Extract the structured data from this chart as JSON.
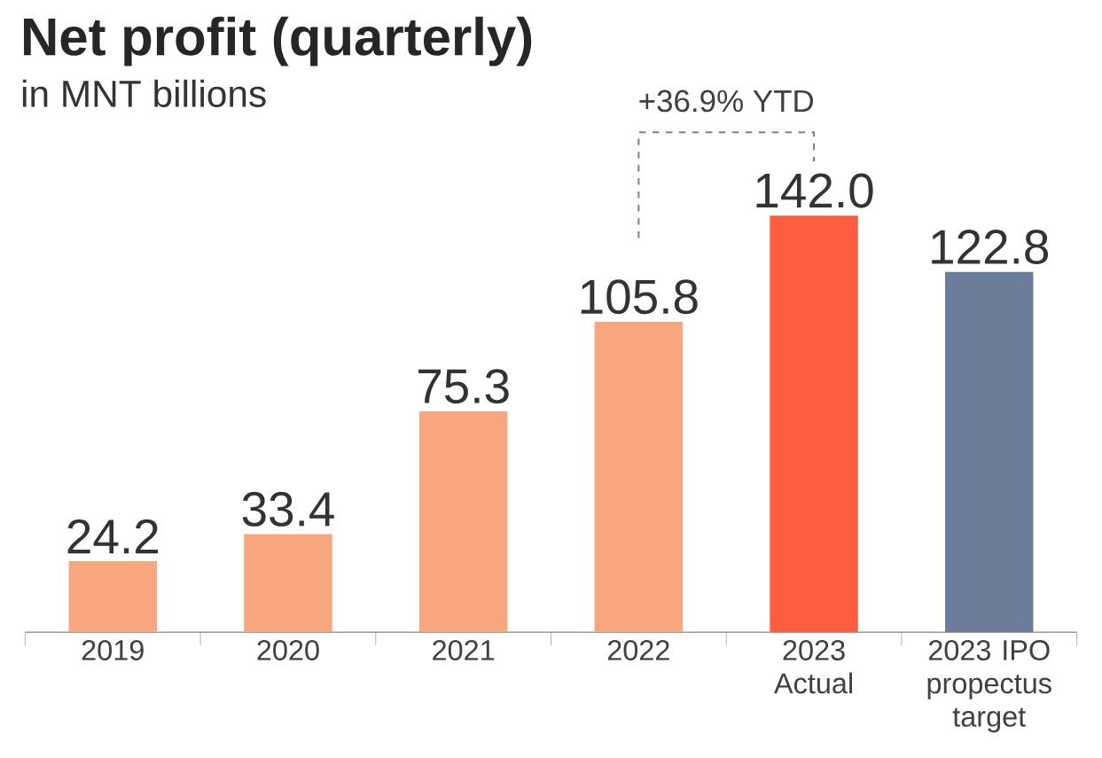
{
  "chart_data": {
    "type": "bar",
    "title": "Net profit (quarterly)",
    "subtitle": "in MNT billions",
    "categories": [
      "2019",
      "2020",
      "2021",
      "2022",
      "2023 Actual",
      "2023 IPO propectus target"
    ],
    "values": [
      24.2,
      33.4,
      75.3,
      105.8,
      142.0,
      122.8
    ],
    "value_labels": [
      "24.2",
      "33.4",
      "75.3",
      "105.8",
      "142.0",
      "122.8"
    ],
    "colors": [
      "#f7a67e",
      "#f7a67e",
      "#f7a67e",
      "#f7a67e",
      "#fe5e3f",
      "#6b7d9a"
    ],
    "annotations": [
      "+36.9% YTD"
    ]
  }
}
